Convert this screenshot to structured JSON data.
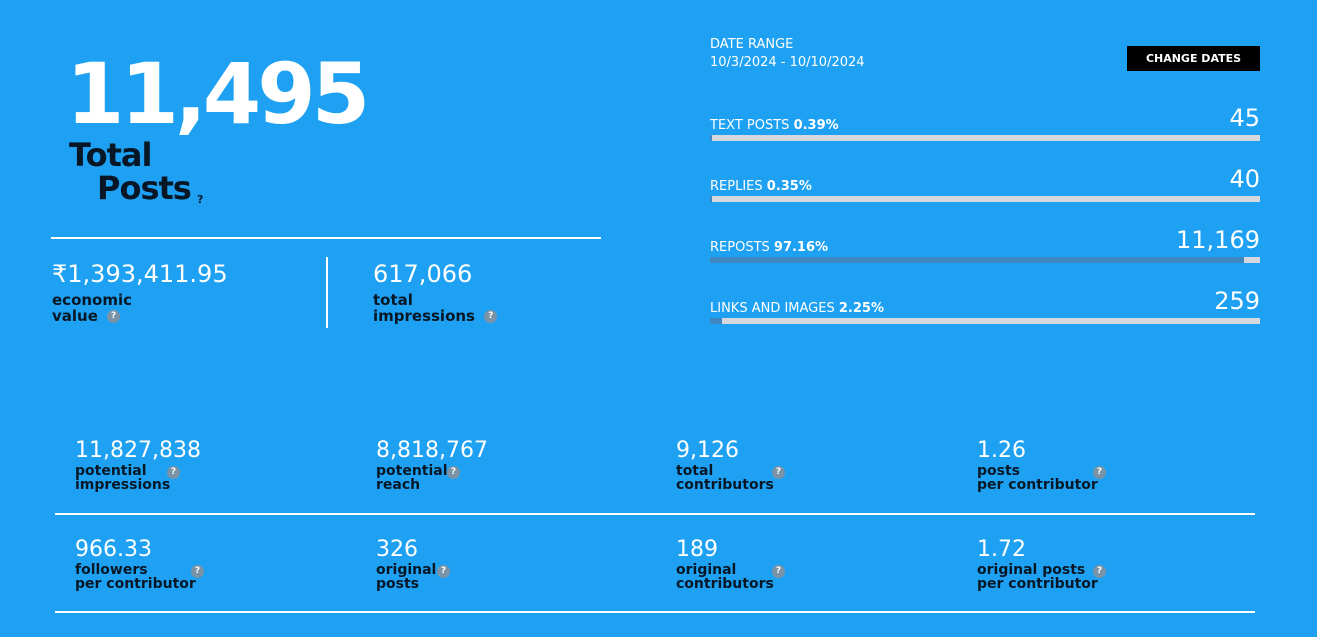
{
  "hero": {
    "total_posts": "11,495",
    "label_line1": "Total",
    "label_line2": "Posts",
    "help": "?"
  },
  "economic": {
    "value": "₹1,393,411.95",
    "label_line1": "economic",
    "label_line2": "value",
    "help": "?"
  },
  "impressions": {
    "value": "617,066",
    "label_line1": "total",
    "label_line2": "impressions",
    "help": "?"
  },
  "date_range": {
    "title": "DATE RANGE",
    "value": "10/3/2024 - 10/10/2024",
    "change_label": "CHANGE DATES"
  },
  "breakdown": [
    {
      "label": "TEXT POSTS",
      "percent": "0.39%",
      "value": "45",
      "fraction": 0.0039
    },
    {
      "label": "REPLIES",
      "percent": "0.35%",
      "value": "40",
      "fraction": 0.0035
    },
    {
      "label": "REPOSTS",
      "percent": "97.16%",
      "value": "11,169",
      "fraction": 0.9716
    },
    {
      "label": "LINKS AND IMAGES",
      "percent": "2.25%",
      "value": "259",
      "fraction": 0.0225
    }
  ],
  "metrics": [
    {
      "value": "11,827,838",
      "line1": "potential",
      "line2": "impressions",
      "help": "?"
    },
    {
      "value": "8,818,767",
      "line1": "potential",
      "line2": "reach",
      "help": "?"
    },
    {
      "value": "9,126",
      "line1": "total",
      "line2": "contributors",
      "help": "?"
    },
    {
      "value": "1.26",
      "line1": "posts",
      "line2": "per contributor",
      "help": "?"
    },
    {
      "value": "966.33",
      "line1": "followers",
      "line2": "per contributor",
      "help": "?"
    },
    {
      "value": "326",
      "line1": "original",
      "line2": "posts",
      "help": "?"
    },
    {
      "value": "189",
      "line1": "original",
      "line2": "contributors",
      "help": "?"
    },
    {
      "value": "1.72",
      "line1": "original posts",
      "line2": "per contributor",
      "help": "?"
    }
  ],
  "colors": {
    "background": "#1ea1f2",
    "text": "#ffffff",
    "label_dark": "#071726",
    "bar_track": "#d4d8dc",
    "bar_fill": "#3e87c0",
    "button_bg": "#000000"
  }
}
